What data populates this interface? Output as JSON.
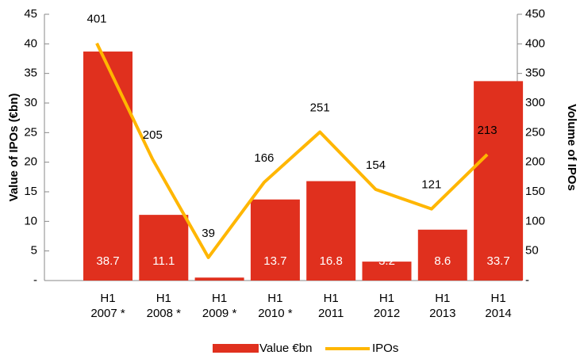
{
  "chart_data": {
    "type": "bar",
    "categories": [
      "H1\n2007 *",
      "H1\n2008 *",
      "H1\n2009 *",
      "H1\n2010 *",
      "H1\n2011",
      "H1\n2012",
      "H1\n2013",
      "H1\n2014"
    ],
    "series": [
      {
        "name": "Value €bn",
        "type": "bar",
        "color": "#e0301e",
        "values": [
          38.7,
          11.1,
          0.5,
          13.7,
          16.8,
          3.2,
          8.6,
          33.7
        ]
      },
      {
        "name": "IPOs",
        "type": "line",
        "axis": "y2",
        "color": "#ffb600",
        "values": [
          401,
          205,
          39,
          166,
          251,
          154,
          121,
          213
        ]
      }
    ],
    "ylabel": "Value of IPOs (€bn)",
    "y2label": "Volume of IPOs",
    "ylim": [
      0,
      45
    ],
    "yticks": [
      {
        "value": 0,
        "label": "-"
      },
      5,
      10,
      15,
      20,
      25,
      30,
      35,
      40,
      45
    ],
    "y2lim": [
      0,
      450
    ],
    "y2ticks": [
      {
        "value": 0,
        "label": "-"
      },
      50,
      100,
      150,
      200,
      250,
      300,
      350,
      400,
      450
    ]
  }
}
